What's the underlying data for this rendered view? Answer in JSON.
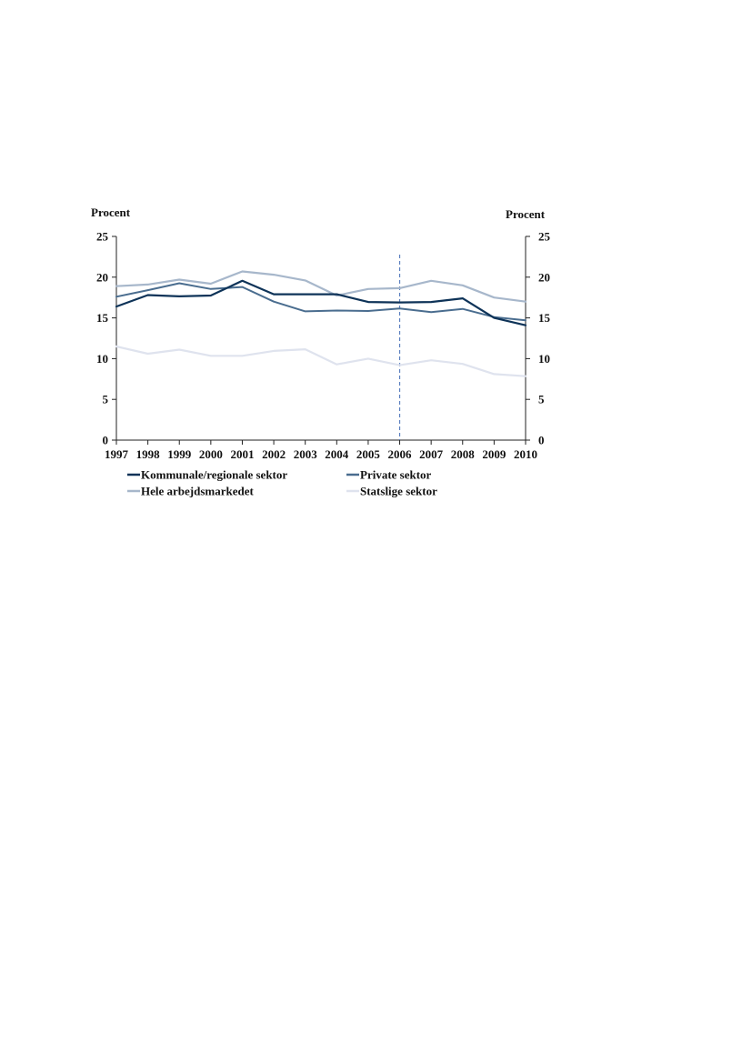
{
  "chart_data": {
    "type": "line",
    "left_axis_label": "Procent",
    "right_axis_label": "Procent",
    "ylim": [
      0,
      25
    ],
    "yticks": [
      0,
      5,
      10,
      15,
      20,
      25
    ],
    "categories": [
      "1997",
      "1998",
      "1999",
      "2000",
      "2001",
      "2002",
      "2003",
      "2004",
      "2005",
      "2006",
      "2007",
      "2008",
      "2009",
      "2010"
    ],
    "marker_line_at": "2006",
    "marker_line_color": "#5b7fbf",
    "grid": false,
    "legend_position": "bottom",
    "series": [
      {
        "name": "Kommunale/regionale sektor",
        "color": "#0e3358",
        "width": 2.2,
        "values": [
          16.4,
          17.8,
          17.65,
          17.75,
          19.55,
          17.9,
          17.9,
          17.9,
          16.95,
          16.9,
          16.95,
          17.4,
          15.0,
          14.1
        ]
      },
      {
        "name": "Private sektor",
        "color": "#4a6d8f",
        "width": 2.0,
        "values": [
          17.6,
          18.4,
          19.25,
          18.55,
          18.8,
          17.0,
          15.8,
          15.9,
          15.85,
          16.15,
          15.7,
          16.1,
          15.1,
          14.7
        ]
      },
      {
        "name": "Hele arbejdsmarkedet",
        "color": "#a7b7cb",
        "width": 2.2,
        "values": [
          18.9,
          19.1,
          19.7,
          19.2,
          20.7,
          20.3,
          19.6,
          17.75,
          18.55,
          18.65,
          19.55,
          19.0,
          17.5,
          17.0
        ]
      },
      {
        "name": "Statslige sektor",
        "color": "#dfe3ee",
        "width": 2.2,
        "values": [
          11.5,
          10.6,
          11.1,
          10.35,
          10.35,
          10.95,
          11.15,
          9.3,
          10.0,
          9.2,
          9.8,
          9.35,
          8.1,
          7.85
        ]
      }
    ]
  }
}
